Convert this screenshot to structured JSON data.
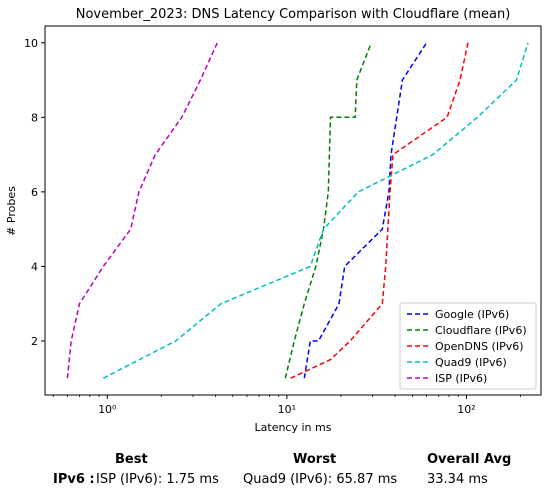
{
  "chart_data": {
    "type": "line",
    "title": "November_2023: DNS Latency Comparison with Cloudflare (mean)",
    "xlabel": "Latency in ms",
    "ylabel": "# Probes",
    "xscale": "log",
    "xlim": [
      0.45,
      260
    ],
    "ylim": [
      0.55,
      10.45
    ],
    "x_ticks": [
      1,
      10,
      100
    ],
    "x_tick_labels": [
      "10⁰",
      "10¹",
      "10²"
    ],
    "y_ticks": [
      2,
      4,
      6,
      8,
      10
    ],
    "y_tick_labels": [
      "2",
      "4",
      "6",
      "8",
      "10"
    ],
    "grid": false,
    "legend_position": "lower-right",
    "series": [
      {
        "name": "Google (IPv6)",
        "color": "#0000ff",
        "dash": "dashed",
        "x": [
          12.5,
          13.5,
          15,
          19.5,
          21,
          34,
          37,
          38,
          44,
          60
        ],
        "y": [
          1,
          2,
          2,
          3,
          4,
          5,
          6,
          7,
          9,
          10
        ]
      },
      {
        "name": "Cloudflare (IPv6)",
        "color": "#008000",
        "dash": "dashed",
        "x": [
          9.8,
          11,
          12.5,
          14.5,
          16,
          17,
          17.5,
          24,
          24.5,
          29.5
        ],
        "y": [
          1,
          2,
          3,
          4,
          5,
          6,
          8,
          8,
          9,
          10
        ]
      },
      {
        "name": "OpenDNS (IPv6)",
        "color": "#ff0000",
        "dash": "dashed",
        "x": [
          10.5,
          17.5,
          22.5,
          34,
          35.5,
          37.5,
          39,
          78,
          92,
          102
        ],
        "y": [
          1,
          1.5,
          2,
          3,
          4,
          6,
          7,
          8,
          9,
          10
        ]
      },
      {
        "name": "Quad9 (IPv6)",
        "color": "#00bfbf",
        "dash": "dashed",
        "x": [
          0.95,
          2.4,
          4.3,
          13.5,
          16,
          25,
          65,
          115,
          190,
          220
        ],
        "y": [
          1,
          2,
          3,
          4,
          5,
          6,
          7,
          8,
          9,
          10
        ]
      },
      {
        "name": "ISP (IPv6)",
        "color": "#bf00bf",
        "dash": "dashed",
        "x": [
          0.6,
          0.63,
          0.7,
          0.95,
          1.35,
          1.5,
          1.85,
          2.6,
          3.3,
          4.1
        ],
        "y": [
          1,
          2,
          3,
          4,
          5,
          6,
          7,
          8,
          9,
          10
        ]
      }
    ]
  },
  "summary": {
    "best_header": "Best",
    "worst_header": "Worst",
    "avg_header": "Overall Avg",
    "row_label": "IPv6 :",
    "best_value": "ISP (IPv6): 1.75 ms",
    "worst_value": "Quad9 (IPv6): 65.87 ms",
    "avg_value": "33.34 ms"
  }
}
